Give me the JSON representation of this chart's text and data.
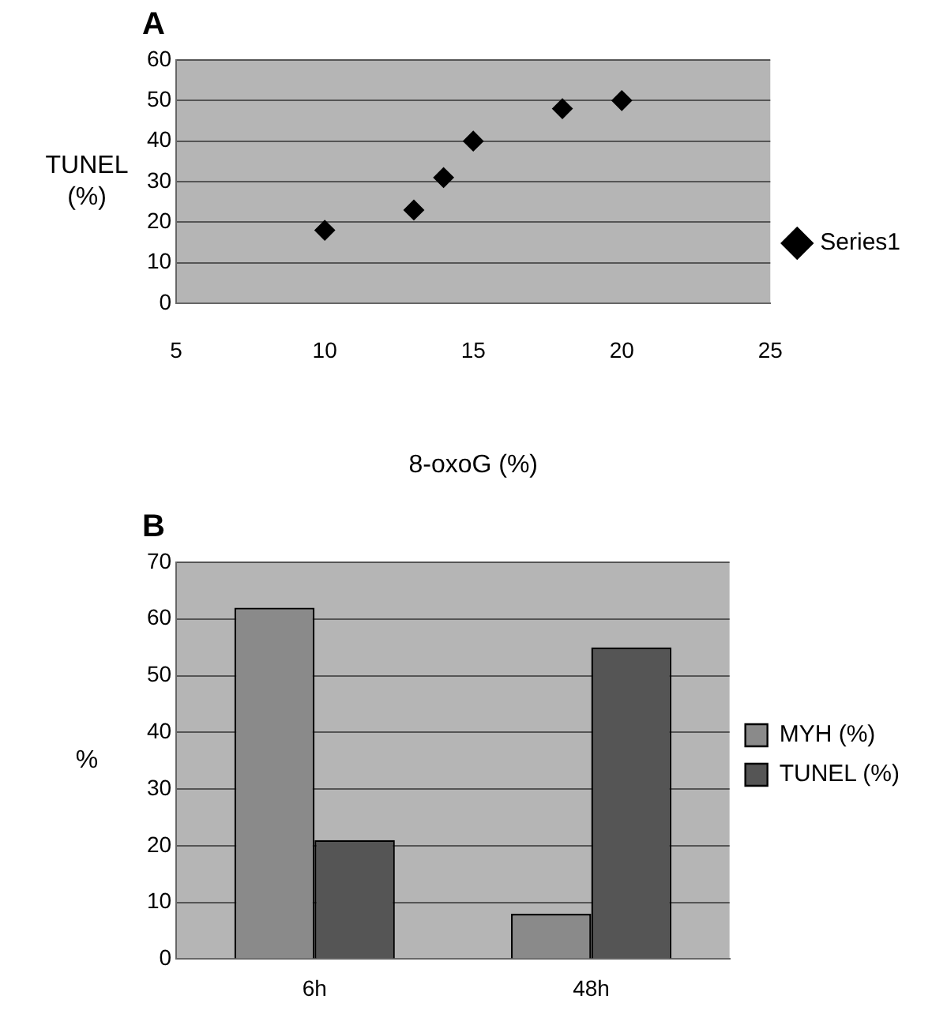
{
  "chart_data": [
    {
      "type": "scatter",
      "title": "A",
      "xlabel": "8-oxoG (%)",
      "ylabel": "TUNEL (%)",
      "x": [
        10,
        13,
        14,
        15,
        18,
        20
      ],
      "series": [
        {
          "name": "Series1",
          "color": "#000000",
          "values": [
            18,
            23,
            31,
            40,
            48,
            50
          ]
        }
      ],
      "xlim": [
        5,
        25
      ],
      "xticks": [
        5,
        10,
        15,
        20,
        25
      ],
      "ylim": [
        0,
        60
      ],
      "yticks": [
        0,
        10,
        20,
        30,
        40,
        50,
        60
      ],
      "grid": "y",
      "legend": "right",
      "marker": "diamond"
    },
    {
      "type": "bar",
      "title": "B",
      "ylabel": "%",
      "categories": [
        "6h",
        "48h"
      ],
      "series": [
        {
          "name": "MYH (%)",
          "color": "#8a8a8a",
          "values": [
            62,
            8
          ]
        },
        {
          "name": "TUNEL (%)",
          "color": "#555555",
          "values": [
            21,
            55
          ]
        }
      ],
      "ylim": [
        0,
        70
      ],
      "yticks": [
        0,
        10,
        20,
        30,
        40,
        50,
        60,
        70
      ],
      "grid": "y",
      "legend": "right"
    }
  ]
}
